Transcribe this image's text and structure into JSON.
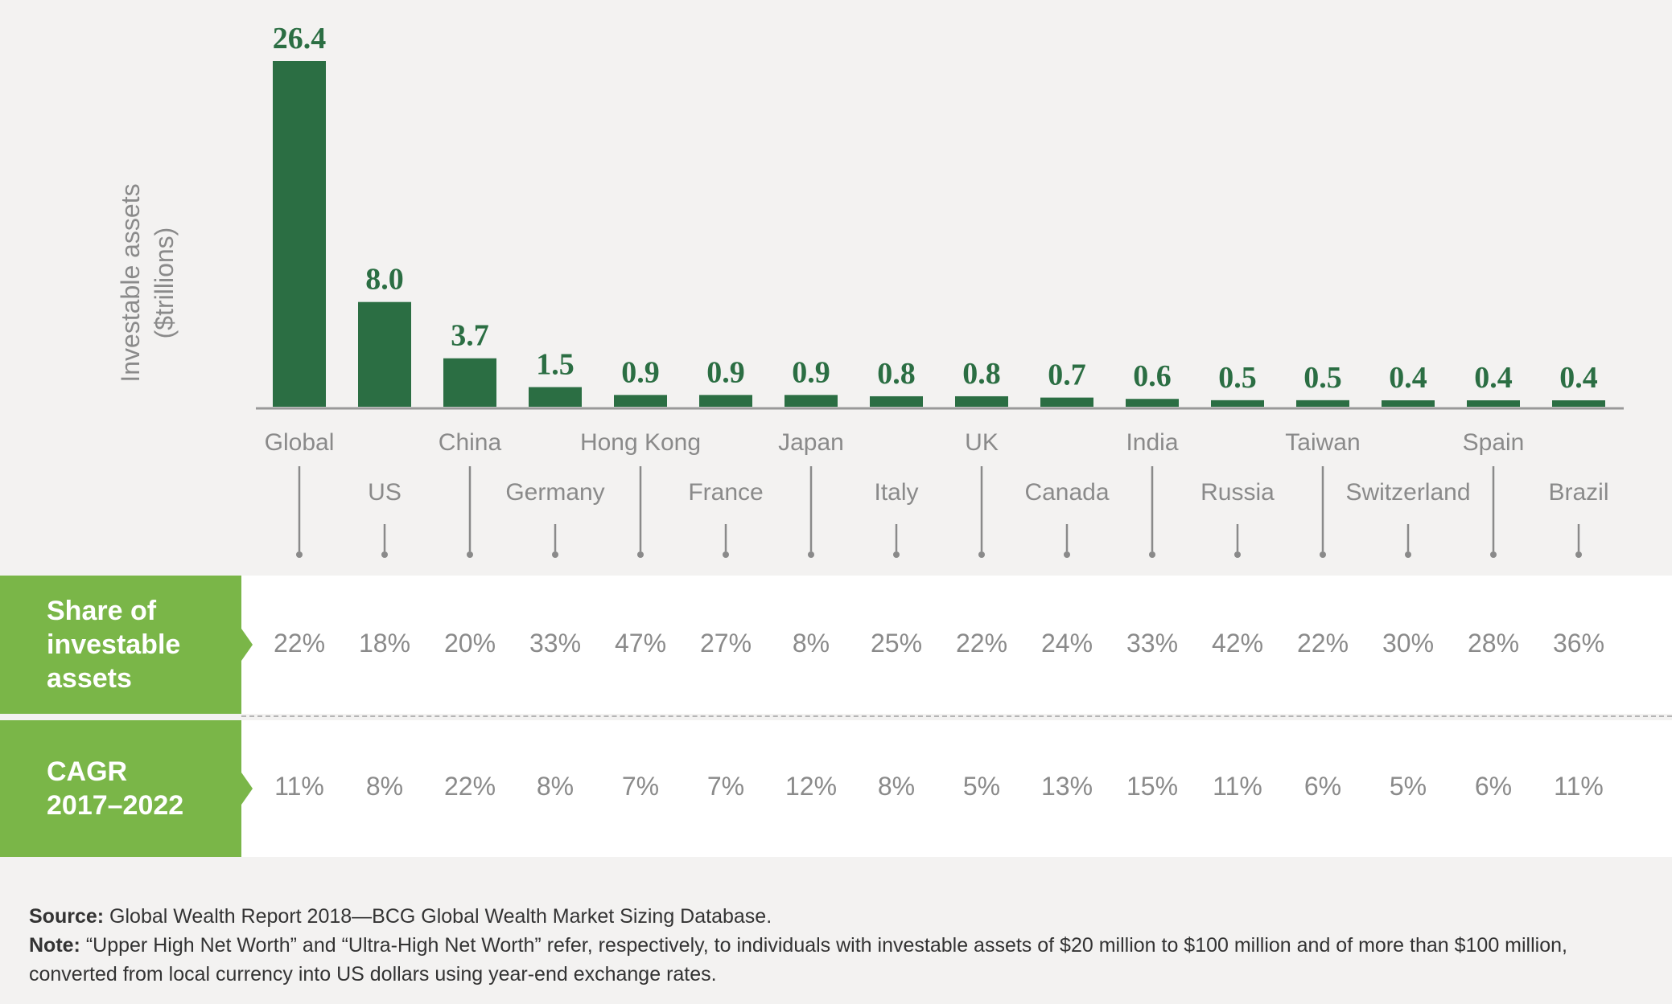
{
  "colors": {
    "bar": "#2b6e43",
    "value_label": "#2b6e43",
    "axis_line": "#999999",
    "category_label": "#8a8a8a",
    "row_label_bg": "#7ab648",
    "table_bg": "#ffffff",
    "page_bg": "#f3f2f1"
  },
  "chart_data": {
    "type": "bar",
    "ylabel_line1": "Investable assets",
    "ylabel_line2": "($trillions)",
    "categories": [
      "Global",
      "US",
      "China",
      "Germany",
      "Hong Kong",
      "France",
      "Japan",
      "Italy",
      "UK",
      "Canada",
      "India",
      "Russia",
      "Taiwan",
      "Switzerland",
      "Spain",
      "Brazil"
    ],
    "values": [
      26.4,
      8.0,
      3.7,
      1.5,
      0.9,
      0.9,
      0.9,
      0.8,
      0.8,
      0.7,
      0.6,
      0.5,
      0.5,
      0.4,
      0.4,
      0.4
    ],
    "value_labels": [
      "26.4",
      "8.0",
      "3.7",
      "1.5",
      "0.9",
      "0.9",
      "0.9",
      "0.8",
      "0.8",
      "0.7",
      "0.6",
      "0.5",
      "0.5",
      "0.4",
      "0.4",
      "0.4"
    ],
    "ylim": [
      0,
      26.4
    ],
    "grid": false
  },
  "table": {
    "share_label": [
      "Share of",
      "investable",
      "assets"
    ],
    "share_values": [
      "22%",
      "18%",
      "20%",
      "33%",
      "47%",
      "27%",
      "8%",
      "25%",
      "22%",
      "24%",
      "33%",
      "42%",
      "22%",
      "30%",
      "28%",
      "36%"
    ],
    "cagr_label": [
      "CAGR",
      "2017–2022"
    ],
    "cagr_values": [
      "11%",
      "8%",
      "22%",
      "8%",
      "7%",
      "7%",
      "12%",
      "8%",
      "5%",
      "13%",
      "15%",
      "11%",
      "6%",
      "5%",
      "6%",
      "11%"
    ]
  },
  "footer": {
    "source_label": "Source:",
    "source_text": "Global Wealth Report 2018—BCG Global Wealth Market Sizing Database.",
    "note_label": "Note:",
    "note_text": "“Upper High Net Worth” and “Ultra-High Net Worth” refer, respectively, to individuals with investable assets of $20 million to $100 million and of more than $100 million, converted from local currency into US dollars using year-end exchange rates."
  }
}
